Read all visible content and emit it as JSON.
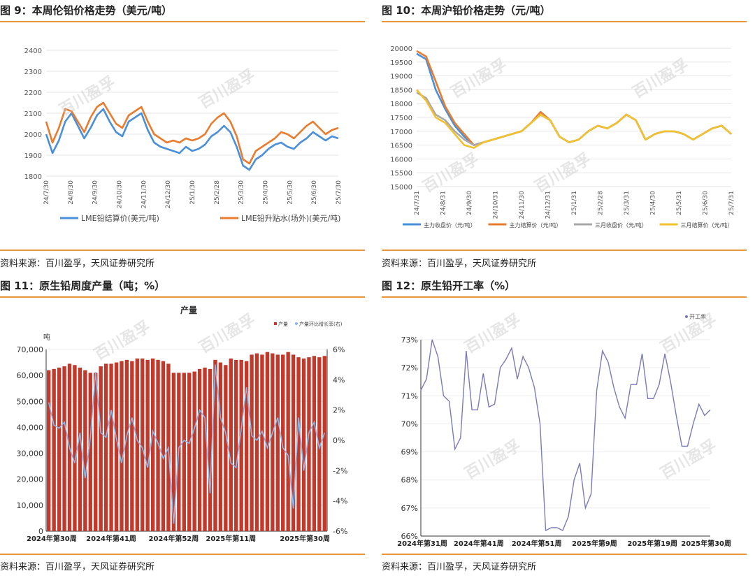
{
  "watermark": "百川盈孚",
  "panels": [
    {
      "title": "图 9：本周伦铅价格走势（美元/吨）",
      "source": "资料来源：百川盈孚，天风证券研究所"
    },
    {
      "title": "图 10：本周沪铅价格走势（元/吨）",
      "source": "资料来源：百川盈孚，天风证券研究所"
    },
    {
      "title": "图 11：原生铅周度产量（吨；%）",
      "source": "资料来源：百川盈孚，天风证券研究所"
    },
    {
      "title": "图 12：原生铅开工率（%）",
      "source": "资料来源：百川盈孚，天风证券研究所"
    }
  ],
  "chart_data": [
    {
      "type": "line",
      "title": "",
      "x_ticks": [
        "24/7/30",
        "24/8/30",
        "24/9/30",
        "24/10/30",
        "24/11/30",
        "24/12/30",
        "25/1/30",
        "25/2/28",
        "25/3/30",
        "25/4/30",
        "25/5/30",
        "25/6/30",
        "25/7/30"
      ],
      "ylim": [
        1800,
        2400
      ],
      "y_ticks": [
        1800,
        1900,
        2000,
        2100,
        2200,
        2300,
        2400
      ],
      "legend_position": "bottom",
      "series": [
        {
          "name": "LME铅结算价(美元/吨)",
          "color": "#4a8fd8",
          "values": [
            2000,
            1910,
            1970,
            2060,
            2100,
            2040,
            1980,
            2030,
            2090,
            2120,
            2060,
            2010,
            1990,
            2060,
            2080,
            2100,
            2020,
            1960,
            1940,
            1930,
            1920,
            1910,
            1940,
            1920,
            1930,
            1950,
            1990,
            2010,
            2040,
            2010,
            1940,
            1850,
            1830,
            1880,
            1900,
            1930,
            1950,
            1960,
            1940,
            1930,
            1960,
            1980,
            2010,
            1990,
            1970,
            1990,
            1980
          ]
        },
        {
          "name": "LME铅升贴水(场外)(美元/吨)",
          "color": "#e87c2e",
          "values": [
            2060,
            1960,
            2030,
            2120,
            2110,
            2060,
            2010,
            2080,
            2130,
            2150,
            2100,
            2050,
            2030,
            2090,
            2110,
            2130,
            2060,
            2000,
            1980,
            1960,
            1970,
            1960,
            1980,
            1970,
            1980,
            2000,
            2050,
            2080,
            2100,
            2060,
            1990,
            1880,
            1860,
            1920,
            1940,
            1960,
            1980,
            2010,
            2000,
            1980,
            2010,
            2040,
            2060,
            2030,
            2000,
            2020,
            2030
          ]
        }
      ]
    },
    {
      "type": "line",
      "title": "",
      "x_ticks": [
        "24/7/31",
        "24/8/31",
        "24/9/30",
        "24/10/31",
        "24/11/30",
        "24/12/31",
        "25/1/31",
        "25/2/28",
        "25/3/31",
        "25/4/30",
        "25/5/31",
        "25/6/30",
        "25/7/31"
      ],
      "ylim": [
        15000,
        20000
      ],
      "y_ticks": [
        15000,
        15500,
        16000,
        16500,
        17000,
        17500,
        18000,
        18500,
        19000,
        19500,
        20000
      ],
      "legend_position": "bottom",
      "series": [
        {
          "name": "主力收盘价（元/吨）",
          "color": "#4a8fd8",
          "values": [
            19800,
            19600,
            18500,
            17800,
            17200,
            16800,
            16500,
            16600,
            16700,
            16800,
            16900,
            17000,
            17300,
            17600,
            17400,
            16800,
            16600,
            16700,
            17000,
            17200,
            17100,
            17300,
            17600,
            17400,
            16700,
            16900,
            17000,
            17000,
            16900,
            16700,
            16900,
            17100,
            17200,
            16900
          ]
        },
        {
          "name": "主力结算价（元/吨）",
          "color": "#e87c2e",
          "values": [
            19900,
            19700,
            18800,
            17900,
            17300,
            16900,
            16500,
            16600,
            16700,
            16800,
            16900,
            17000,
            17300,
            17700,
            17400,
            16800,
            16600,
            16700,
            17000,
            17200,
            17100,
            17300,
            17600,
            17400,
            16700,
            16900,
            17000,
            17000,
            16900,
            16700,
            16900,
            17100,
            17200,
            16900
          ]
        },
        {
          "name": "三月收盘价（元/吨）",
          "color": "#a9a9a9",
          "values": [
            18400,
            18200,
            17600,
            17400,
            17000,
            16700,
            16500,
            16600,
            16700,
            16800,
            16900,
            17000,
            17300,
            17600,
            17400,
            16800,
            16600,
            16700,
            17000,
            17200,
            17100,
            17300,
            17600,
            17400,
            16700,
            16900,
            17000,
            17000,
            16900,
            16700,
            16900,
            17100,
            17200,
            16900
          ]
        },
        {
          "name": "三月结算价（元/吨）",
          "color": "#f2c12e",
          "values": [
            18500,
            18100,
            17500,
            17300,
            16900,
            16500,
            16400,
            16600,
            16700,
            16800,
            16900,
            17000,
            17300,
            17600,
            17400,
            16800,
            16600,
            16700,
            17000,
            17200,
            17100,
            17300,
            17600,
            17400,
            16700,
            16900,
            17000,
            17000,
            16900,
            16700,
            16900,
            17100,
            17200,
            16900
          ]
        }
      ]
    },
    {
      "type": "bar",
      "title": "产量",
      "ylabel": "吨",
      "x_ticks": [
        "2024年第30周",
        "2024年第41周",
        "2024年第52周",
        "2025年第11周",
        "2025年第30周"
      ],
      "ylim": [
        0,
        70000
      ],
      "y_ticks": [
        0,
        10000,
        20000,
        30000,
        40000,
        50000,
        60000,
        70000
      ],
      "y2lim": [
        -6,
        6
      ],
      "y2_ticks": [
        -6,
        -4,
        -2,
        0,
        2,
        4,
        6
      ],
      "legend_position": "top-right",
      "series": [
        {
          "name": "产量",
          "color": "#c0392b",
          "axis": "left",
          "values": [
            62000,
            62500,
            63000,
            63500,
            64500,
            64000,
            63000,
            62000,
            61000,
            61000,
            63500,
            64500,
            64500,
            65000,
            65500,
            66000,
            65500,
            66500,
            66500,
            66000,
            66500,
            66000,
            65500,
            64500,
            61000,
            61000,
            61000,
            61000,
            61500,
            62500,
            63000,
            62500,
            66000,
            65000,
            64000,
            66500,
            66000,
            66000,
            65500,
            68000,
            68500,
            68000,
            69000,
            68500,
            68000,
            68000,
            69000,
            68000,
            67000,
            66500,
            67000,
            67500,
            67000,
            67500
          ]
        },
        {
          "name": "产量环比增长率(右)",
          "color": "#8fb6e8",
          "axis": "right",
          "values": [
            2.5,
            1.0,
            0.8,
            1.2,
            -0.5,
            -1.5,
            0.5,
            -2.5,
            0.2,
            4.5,
            0.5,
            0.2,
            2.0,
            0.1,
            -1.5,
            0.3,
            1.5,
            0.0,
            -0.5,
            -1.8,
            0.6,
            -0.2,
            -1.2,
            -0.5,
            -5.5,
            -0.5,
            0.0,
            -0.2,
            0.8,
            2.0,
            1.5,
            -3.5,
            5.0,
            1.5,
            0.5,
            -1.5,
            -1.8,
            0.8,
            3.5,
            0.3,
            0.0,
            0.6,
            -0.5,
            0.5,
            1.5,
            -0.5,
            -1.0,
            -4.5,
            1.5,
            -2.0,
            0.5,
            1.2,
            -0.5,
            0.5
          ]
        }
      ]
    },
    {
      "type": "line",
      "title": "",
      "x_ticks": [
        "2024年第31周",
        "2024年第41周",
        "2024年第51周",
        "2025年第9周",
        "2025年第19周",
        "2025年第30周"
      ],
      "ylim": [
        66,
        73
      ],
      "y_ticks": [
        "66%",
        "67%",
        "68%",
        "69%",
        "70%",
        "71%",
        "72%",
        "73%"
      ],
      "legend_position": "top-left",
      "series": [
        {
          "name": "开工率",
          "color": "#7b7bb5",
          "values": [
            71.2,
            71.6,
            73.0,
            72.4,
            71.0,
            70.8,
            69.1,
            69.5,
            72.6,
            70.5,
            70.5,
            71.8,
            70.6,
            70.7,
            72.0,
            72.3,
            72.7,
            71.6,
            72.4,
            72.0,
            71.3,
            70.0,
            66.2,
            66.3,
            66.3,
            66.2,
            66.7,
            68.0,
            68.6,
            67.0,
            67.5,
            71.2,
            72.6,
            72.2,
            71.3,
            70.6,
            70.2,
            71.4,
            71.4,
            72.5,
            70.9,
            70.9,
            71.4,
            72.5,
            71.5,
            70.3,
            69.2,
            69.2,
            70.0,
            70.7,
            70.3,
            70.5
          ]
        }
      ]
    }
  ]
}
